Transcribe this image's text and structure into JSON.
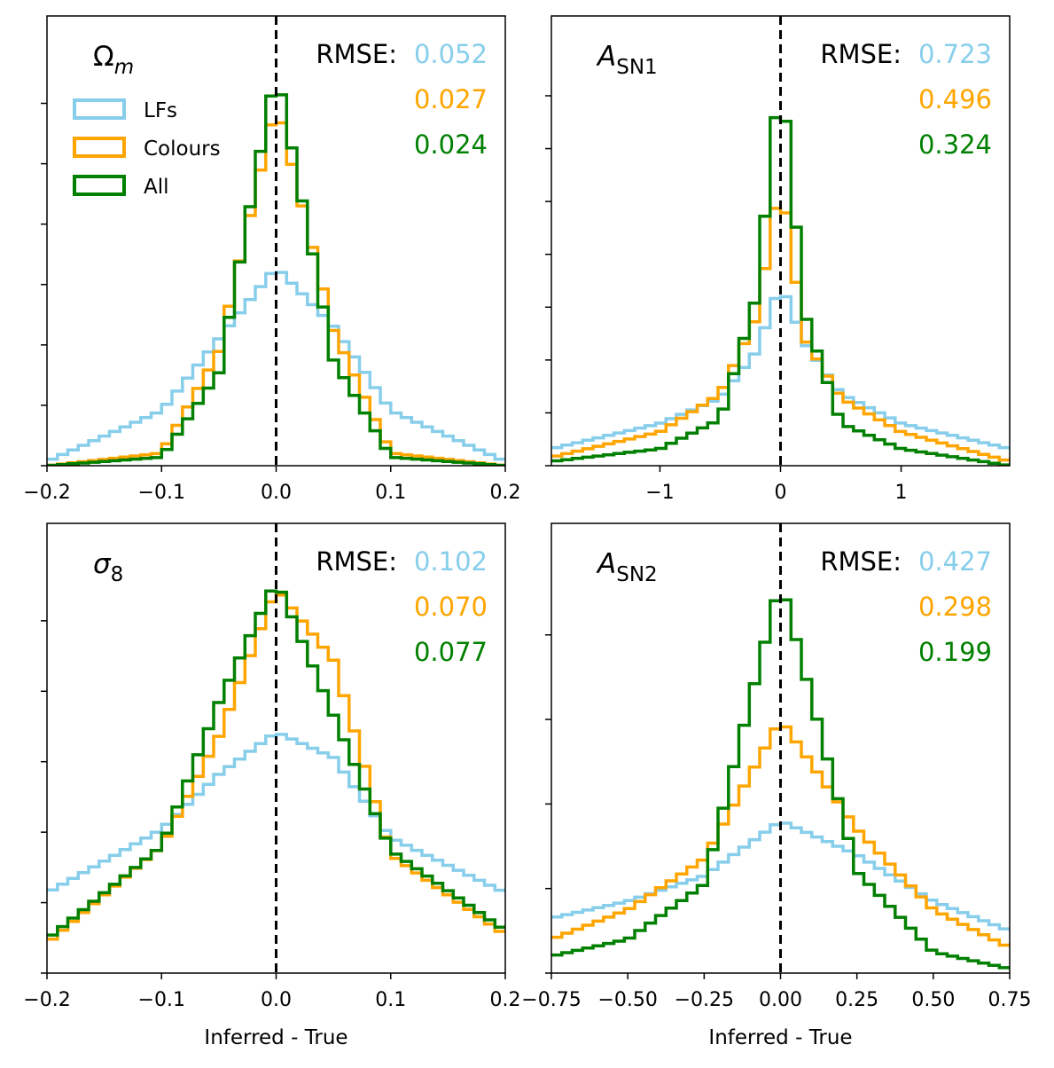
{
  "colors": {
    "lfs": "#87CEEB",
    "colours": "#FFA500",
    "all": "#008000",
    "axis": "#000000",
    "zero_line": "#000000"
  },
  "legend": {
    "placement": "upper-left of first panel",
    "entries": [
      {
        "key": "lfs",
        "label": "LFs"
      },
      {
        "key": "colours",
        "label": "Colours"
      },
      {
        "key": "all",
        "label": "All"
      }
    ]
  },
  "rmse_prefix": "RMSE:",
  "chart_data": [
    {
      "type": "histogram",
      "param_main": "Ω",
      "param_sub": "m",
      "param_sub_italic": true,
      "param_main_italic": false,
      "xlim": [
        -0.2,
        0.2
      ],
      "xticks": [
        -0.2,
        -0.1,
        0.0,
        0.1,
        0.2
      ],
      "xtick_labels": [
        "−0.2",
        "−0.1",
        "0.0",
        "0.1",
        "0.2"
      ],
      "xlabel": "",
      "ylim": [
        0,
        1.0
      ],
      "ytick_count": 7,
      "rmse": {
        "lfs": "0.052",
        "colours": "0.027",
        "all": "0.024"
      },
      "series": [
        {
          "key": "lfs",
          "name": "LFs",
          "x": [
            -0.2,
            -0.1,
            -0.05,
            0.0,
            0.05,
            0.1,
            0.2
          ],
          "y": [
            0.01,
            0.13,
            0.3,
            0.47,
            0.33,
            0.13,
            0.01
          ]
        },
        {
          "key": "colours",
          "name": "Colours",
          "x": [
            -0.2,
            -0.1,
            -0.05,
            0.0,
            0.05,
            0.1,
            0.2
          ],
          "y": [
            0.0,
            0.03,
            0.27,
            0.86,
            0.32,
            0.03,
            0.0
          ]
        },
        {
          "key": "all",
          "name": "All",
          "x": [
            -0.2,
            -0.1,
            -0.05,
            0.0,
            0.05,
            0.1,
            0.2
          ],
          "y": [
            0.0,
            0.02,
            0.22,
            0.94,
            0.25,
            0.02,
            0.0
          ]
        }
      ]
    },
    {
      "type": "histogram",
      "param_main": "A",
      "param_sub": "SN1",
      "param_sub_italic": false,
      "param_main_italic": true,
      "xlim": [
        -1.9,
        1.9
      ],
      "xticks": [
        -1,
        0,
        1
      ],
      "xtick_labels": [
        "−1",
        "0",
        "1"
      ],
      "xlabel": "",
      "ylim": [
        0,
        1.0
      ],
      "ytick_count": 8,
      "rmse": {
        "lfs": "0.723",
        "colours": "0.496",
        "all": "0.324"
      },
      "series": [
        {
          "key": "lfs",
          "name": "LFs",
          "x": [
            -1.9,
            -1.0,
            -0.5,
            -0.2,
            0.0,
            0.2,
            0.5,
            1.0,
            1.9
          ],
          "y": [
            0.04,
            0.1,
            0.16,
            0.27,
            0.43,
            0.29,
            0.17,
            0.1,
            0.04
          ]
        },
        {
          "key": "colours",
          "name": "Colours",
          "x": [
            -1.9,
            -1.0,
            -0.5,
            -0.2,
            0.0,
            0.2,
            0.5,
            1.0,
            1.9
          ],
          "y": [
            0.02,
            0.08,
            0.17,
            0.35,
            0.68,
            0.3,
            0.16,
            0.08,
            0.01
          ]
        },
        {
          "key": "all",
          "name": "All",
          "x": [
            -1.9,
            -1.0,
            -0.5,
            -0.2,
            0.0,
            0.2,
            0.5,
            1.0,
            1.9
          ],
          "y": [
            0.01,
            0.04,
            0.11,
            0.4,
            0.94,
            0.36,
            0.1,
            0.04,
            0.0
          ]
        }
      ]
    },
    {
      "type": "histogram",
      "param_main": "σ",
      "param_sub": "8",
      "param_sub_italic": false,
      "param_main_italic": true,
      "xlim": [
        -0.2,
        0.2
      ],
      "xticks": [
        -0.2,
        -0.1,
        0.0,
        0.1,
        0.2
      ],
      "xtick_labels": [
        "−0.2",
        "−0.1",
        "0.0",
        "0.1",
        "0.2"
      ],
      "xlabel": "Inferred - True",
      "ylim": [
        0,
        1.0
      ],
      "ytick_count": 6,
      "rmse": {
        "lfs": "0.102",
        "colours": "0.070",
        "all": "0.077"
      },
      "series": [
        {
          "key": "lfs",
          "name": "LFs",
          "x": [
            -0.2,
            -0.1,
            -0.05,
            0.0,
            0.05,
            0.1,
            0.2
          ],
          "y": [
            0.19,
            0.34,
            0.47,
            0.57,
            0.51,
            0.32,
            0.19
          ]
        },
        {
          "key": "colours",
          "name": "Colours",
          "x": [
            -0.2,
            -0.1,
            -0.05,
            0.0,
            0.05,
            0.1,
            0.2
          ],
          "y": [
            0.07,
            0.3,
            0.56,
            0.91,
            0.74,
            0.28,
            0.09
          ]
        },
        {
          "key": "all",
          "name": "All",
          "x": [
            -0.2,
            -0.1,
            -0.05,
            0.0,
            0.05,
            0.1,
            0.2
          ],
          "y": [
            0.08,
            0.3,
            0.64,
            0.93,
            0.61,
            0.29,
            0.1
          ]
        }
      ]
    },
    {
      "type": "histogram",
      "param_main": "A",
      "param_sub": "SN2",
      "param_sub_italic": false,
      "param_main_italic": true,
      "xlim": [
        -0.75,
        0.75
      ],
      "xticks": [
        -0.75,
        -0.5,
        -0.25,
        0.0,
        0.25,
        0.5,
        0.75
      ],
      "xtick_labels": [
        "−0.75",
        "−0.50",
        "−0.25",
        "0.00",
        "0.25",
        "0.50",
        "0.75"
      ],
      "xlabel": "Inferred - True",
      "ylim": [
        0,
        1.0
      ],
      "ytick_count": 5,
      "rmse": {
        "lfs": "0.427",
        "colours": "0.298",
        "all": "0.199"
      },
      "series": [
        {
          "key": "lfs",
          "name": "LFs",
          "x": [
            -0.75,
            -0.5,
            -0.25,
            0.0,
            0.25,
            0.5,
            0.75
          ],
          "y": [
            0.13,
            0.17,
            0.23,
            0.36,
            0.28,
            0.17,
            0.1
          ]
        },
        {
          "key": "colours",
          "name": "Colours",
          "x": [
            -0.75,
            -0.5,
            -0.25,
            0.0,
            0.25,
            0.5,
            0.75
          ],
          "y": [
            0.08,
            0.15,
            0.27,
            0.6,
            0.34,
            0.15,
            0.06
          ]
        },
        {
          "key": "all",
          "name": "All",
          "x": [
            -0.75,
            -0.5,
            -0.25,
            0.0,
            0.25,
            0.5,
            0.75
          ],
          "y": [
            0.04,
            0.08,
            0.21,
            0.93,
            0.24,
            0.05,
            0.01
          ]
        }
      ]
    }
  ]
}
